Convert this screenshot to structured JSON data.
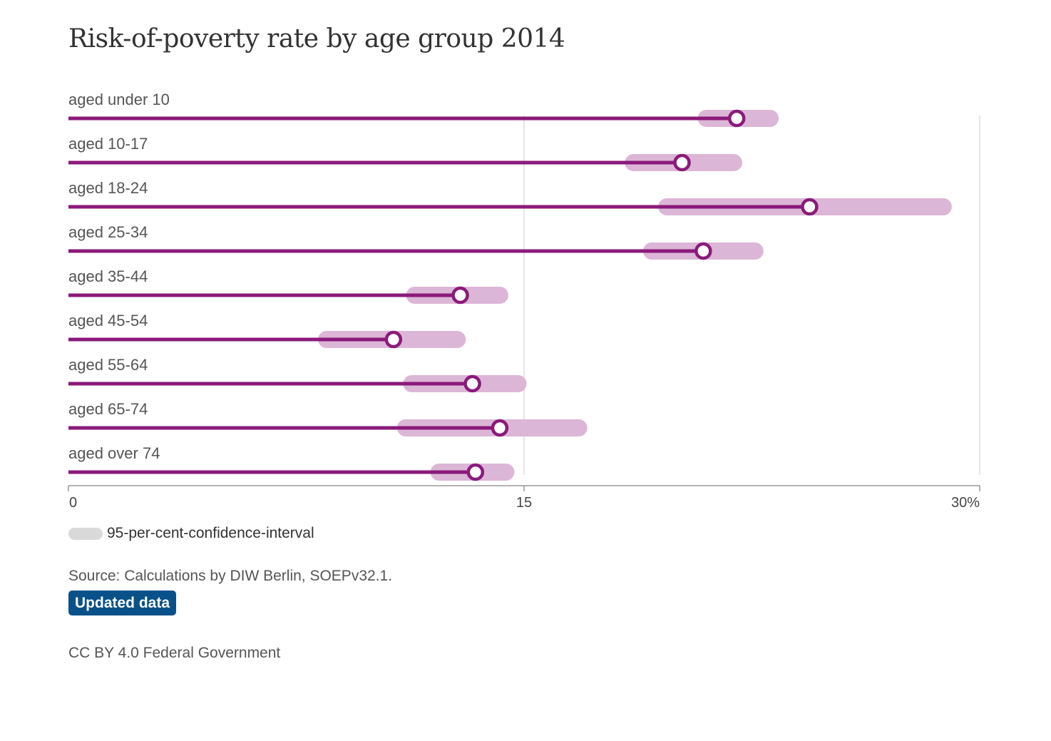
{
  "title": "Risk-of-poverty rate by age group 2014",
  "colors": {
    "line": "#8a1a7a",
    "ci": "#dcb6d6",
    "grid": "#dddddd",
    "axis": "#999999",
    "legend_swatch": "#d9d9d9",
    "badge": "#0b5189"
  },
  "legend": {
    "label": "95-per-cent-confidence-interval"
  },
  "source": "Source: Calculations by DIW Berlin, SOEPv32.1.",
  "badge": "Updated data",
  "license": "CC BY 4.0 Federal Government",
  "chart_data": {
    "type": "dot-range",
    "title": "Risk-of-poverty rate by age group 2014",
    "xlim": [
      0,
      30
    ],
    "x_ticks": [
      "0",
      "15",
      "30%"
    ],
    "x_tick_values": [
      0,
      15,
      30
    ],
    "grid": true,
    "legend_position": "bottom-left",
    "categories": [
      "aged under 10",
      "aged 10-17",
      "aged 18-24",
      "aged 25-34",
      "aged 35-44",
      "aged 45-54",
      "aged 55-64",
      "aged 65-74",
      "aged over 74"
    ],
    "values": [
      22.0,
      20.2,
      24.4,
      20.9,
      12.9,
      10.7,
      13.3,
      14.2,
      13.4
    ],
    "ci_low": [
      21.0,
      18.6,
      19.7,
      19.2,
      11.4,
      8.5,
      11.3,
      11.1,
      12.2
    ],
    "ci_high": [
      23.1,
      21.9,
      28.8,
      22.6,
      14.2,
      12.8,
      14.8,
      16.8,
      14.4
    ]
  }
}
